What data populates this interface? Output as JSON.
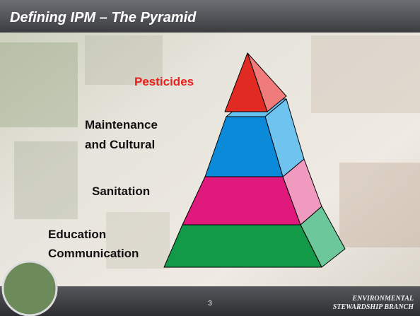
{
  "header": {
    "title": "Defining IPM – The Pyramid"
  },
  "pyramid": {
    "levels": [
      {
        "lines": [
          "Pesticides"
        ]
      },
      {
        "lines": [
          "Maintenance",
          "and Cultural"
        ]
      },
      {
        "lines": [
          "Sanitation"
        ]
      },
      {
        "lines": [
          "Education",
          "Communication"
        ]
      }
    ]
  },
  "footer": {
    "page": "3",
    "brand": [
      "ENVIRONMENTAL",
      "STEWARDSHIP BRANCH"
    ]
  }
}
